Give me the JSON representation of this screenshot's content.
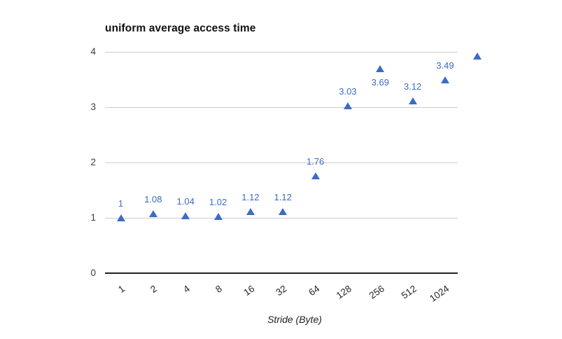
{
  "chart_data": {
    "type": "scatter",
    "title": "uniform average access time",
    "xlabel": "Stride (Byte)",
    "ylabel": "",
    "categories": [
      "1",
      "2",
      "4",
      "8",
      "16",
      "32",
      "64",
      "128",
      "256",
      "512",
      "1024"
    ],
    "series": [
      {
        "name": "uniform average access time",
        "values": [
          1,
          1.08,
          1.04,
          1.02,
          1.12,
          1.12,
          1.76,
          3.03,
          3.69,
          3.12,
          3.49,
          3.92
        ],
        "labels": [
          "1",
          "1.08",
          "1.04",
          "1.02",
          "1.12",
          "1.12",
          "1.76",
          "3.03",
          "3.69",
          "3.12",
          "3.49",
          ""
        ],
        "label_placement": [
          "above",
          "above",
          "above",
          "above",
          "above",
          "above",
          "above",
          "above",
          "below",
          "above",
          "above",
          "none"
        ],
        "note": "12th marker (~3.92, estimated from gridlines) is drawn past the right edge of the plot area with no tick label or data label"
      }
    ],
    "marker": {
      "shape": "triangle-up",
      "color": "#3b6cc5"
    },
    "data_label_color": "#3b6cc5",
    "y_ticks": [
      0,
      1,
      2,
      3,
      4
    ],
    "ylim": [
      0,
      4
    ],
    "grid": true,
    "gridline_color": "#cccccc",
    "axis_line_color": "#212121",
    "legend_position": "none"
  }
}
